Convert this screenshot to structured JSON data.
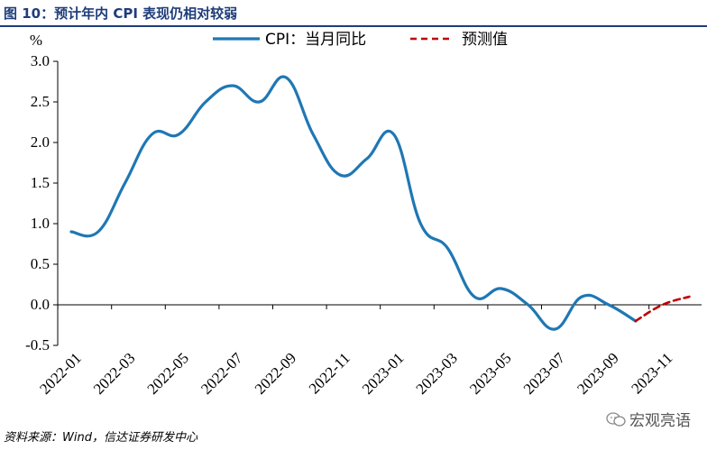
{
  "figure_title": "图 10：预计年内 CPI 表现仍相对较弱",
  "source_note": "资料来源：Wind，信达证券研发中心",
  "watermark": "宏观亮语",
  "colors": {
    "actual": "#1f77b4",
    "forecast": "#c00000",
    "title": "#1f3d7a"
  },
  "chart_data": {
    "type": "line",
    "ylabel": "%",
    "ylim": [
      -0.5,
      3.0
    ],
    "yticks": [
      "3.0",
      "2.5",
      "2.0",
      "1.5",
      "1.0",
      "0.5",
      "0.0",
      "-0.5"
    ],
    "xticks": [
      "2022-01",
      "2022-03",
      "2022-05",
      "2022-07",
      "2022-09",
      "2022-11",
      "2023-01",
      "2023-03",
      "2023-05",
      "2023-07",
      "2023-09",
      "2023-11"
    ],
    "legend_position": "top",
    "grid": false,
    "series": [
      {
        "name": "CPI：当月同比",
        "style": "solid",
        "x": [
          "2022-01",
          "2022-02",
          "2022-03",
          "2022-04",
          "2022-05",
          "2022-06",
          "2022-07",
          "2022-08",
          "2022-09",
          "2022-10",
          "2022-11",
          "2022-12",
          "2023-01",
          "2023-02",
          "2023-03",
          "2023-04",
          "2023-05",
          "2023-06",
          "2023-07",
          "2023-08",
          "2023-09",
          "2023-10"
        ],
        "values": [
          0.9,
          0.9,
          1.5,
          2.1,
          2.1,
          2.5,
          2.7,
          2.5,
          2.8,
          2.1,
          1.6,
          1.8,
          2.1,
          1.0,
          0.7,
          0.1,
          0.2,
          0.0,
          -0.3,
          0.1,
          0.0,
          -0.2
        ]
      },
      {
        "name": "预测值",
        "style": "dashed",
        "x": [
          "2023-10",
          "2023-11",
          "2023-12"
        ],
        "values": [
          -0.2,
          0.0,
          0.1
        ]
      }
    ]
  }
}
